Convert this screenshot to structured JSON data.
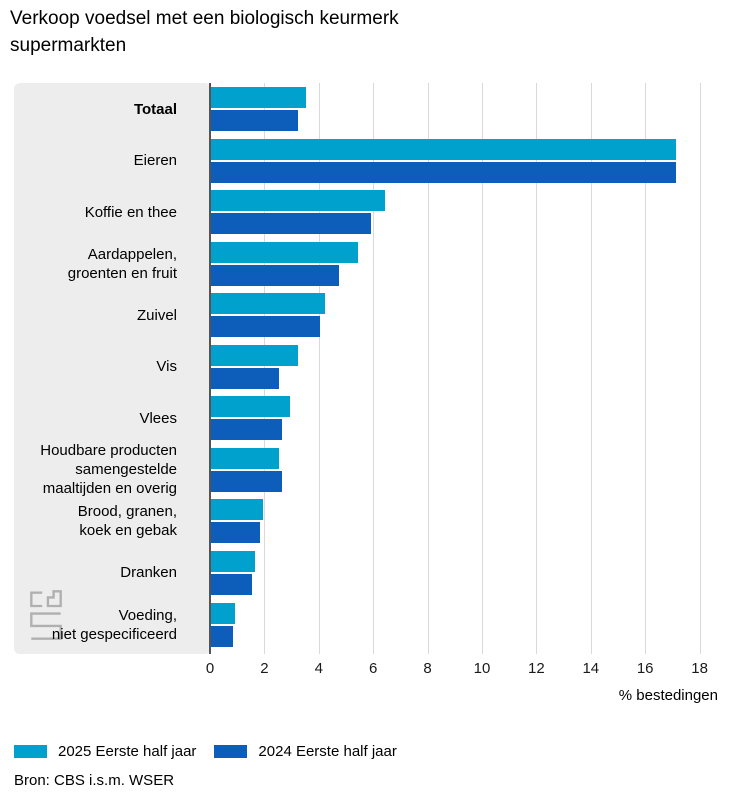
{
  "chart_data": {
    "type": "bar",
    "orientation": "horizontal",
    "title": "Verkoop voedsel met een biologisch keurmerk\nsupermarkten",
    "categories": [
      "Totaal",
      "Eieren",
      "Koffie en thee",
      "Aardappelen,\ngroenten en fruit",
      "Zuivel",
      "Vis",
      "Vlees",
      "Houdbare producten\nsamengestelde\nmaaltijden en overig",
      "Brood, granen,\nkoek en gebak",
      "Dranken",
      "Voeding,\nniet gespecificeerd"
    ],
    "bold_categories": [
      "Totaal"
    ],
    "series": [
      {
        "name": "2025 Eerste half jaar",
        "color": "#00a1cd",
        "values": [
          3.5,
          17.1,
          6.4,
          5.4,
          4.2,
          3.2,
          2.9,
          2.5,
          1.9,
          1.6,
          0.9
        ]
      },
      {
        "name": "2024 Eerste half jaar",
        "color": "#0d5eba",
        "values": [
          3.2,
          17.1,
          5.9,
          4.7,
          4.0,
          2.5,
          2.6,
          2.6,
          1.8,
          1.5,
          0.8
        ]
      }
    ],
    "xlabel": "% bestedingen",
    "xlim": [
      0,
      18
    ],
    "xticks": [
      0,
      2,
      4,
      6,
      8,
      10,
      12,
      14,
      16,
      18
    ],
    "grid": true,
    "legend_position": "bottom"
  },
  "source": "Bron: CBS i.s.m. WSER",
  "icons": {
    "logo": "cbs-logo"
  },
  "colors": {
    "series_2025": "#00a1cd",
    "series_2024": "#0d5eba",
    "panel_background": "#ededed",
    "gridline": "#d9d9d9",
    "axis": "#545454"
  }
}
